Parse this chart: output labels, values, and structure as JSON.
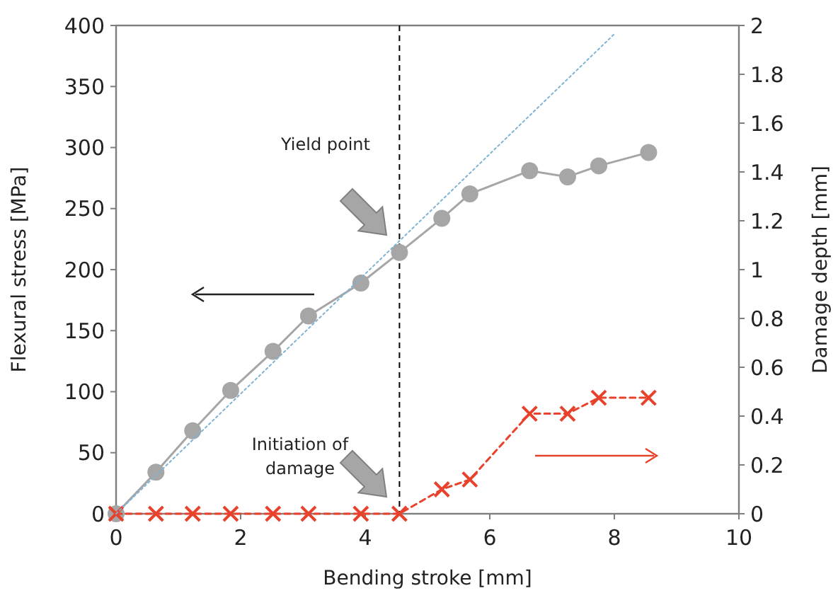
{
  "chart_data": {
    "type": "line",
    "xlabel": "Bending stroke [mm]",
    "ylabel": "Flexural stress [MPa]",
    "y2label": "Damage depth [mm]",
    "x": [
      0,
      0.64,
      1.23,
      1.84,
      2.52,
      3.09,
      3.93,
      4.55,
      5.23,
      5.68,
      6.64,
      7.25,
      7.75,
      8.55
    ],
    "series": [
      {
        "color": "#a6a6a6",
        "marker": "circle",
        "line_style": "solid",
        "values": [
          0,
          34,
          68,
          101,
          133,
          162,
          189,
          214,
          242,
          262,
          281,
          276,
          285,
          296
        ]
      },
      {
        "color": "#e8412c",
        "marker": "cross",
        "line_style": "dashed",
        "axis": "y2",
        "values": [
          0,
          0,
          0,
          0,
          0,
          0,
          0,
          0,
          0.1,
          0.14,
          0.41,
          0.41,
          0.475,
          0.475
        ]
      },
      {
        "color": "#7fb3d5",
        "marker": "none",
        "line_style": "dotted",
        "x": [
          0,
          8
        ],
        "values": [
          0,
          393
        ]
      }
    ],
    "xlim": [
      0,
      10
    ],
    "xticks": [
      0,
      2,
      4,
      6,
      8,
      10
    ],
    "ylim": [
      0,
      400
    ],
    "yticks": [
      0,
      50,
      100,
      150,
      200,
      250,
      300,
      350,
      400
    ],
    "y2lim": [
      0,
      2
    ],
    "y2ticks": [
      0,
      {
        "value": 0.2,
        "label": "0.2"
      },
      {
        "value": 0.4,
        "label": "0.4"
      },
      {
        "value": 0.6,
        "label": "0.6"
      },
      {
        "value": 0.8,
        "label": "0.8"
      },
      1,
      {
        "value": 1.2,
        "label": "1.2"
      },
      {
        "value": 1.4,
        "label": "1.4"
      },
      {
        "value": 1.6,
        "label": "1.6"
      },
      {
        "value": 1.8,
        "label": "1.8"
      },
      2
    ],
    "ref_lines": [
      {
        "axis": "x",
        "value": 4.55,
        "color": "#000000",
        "line_style": "dashed"
      }
    ],
    "annotations": [
      "Yield point",
      "Initiation of damage"
    ],
    "grid": false
  }
}
